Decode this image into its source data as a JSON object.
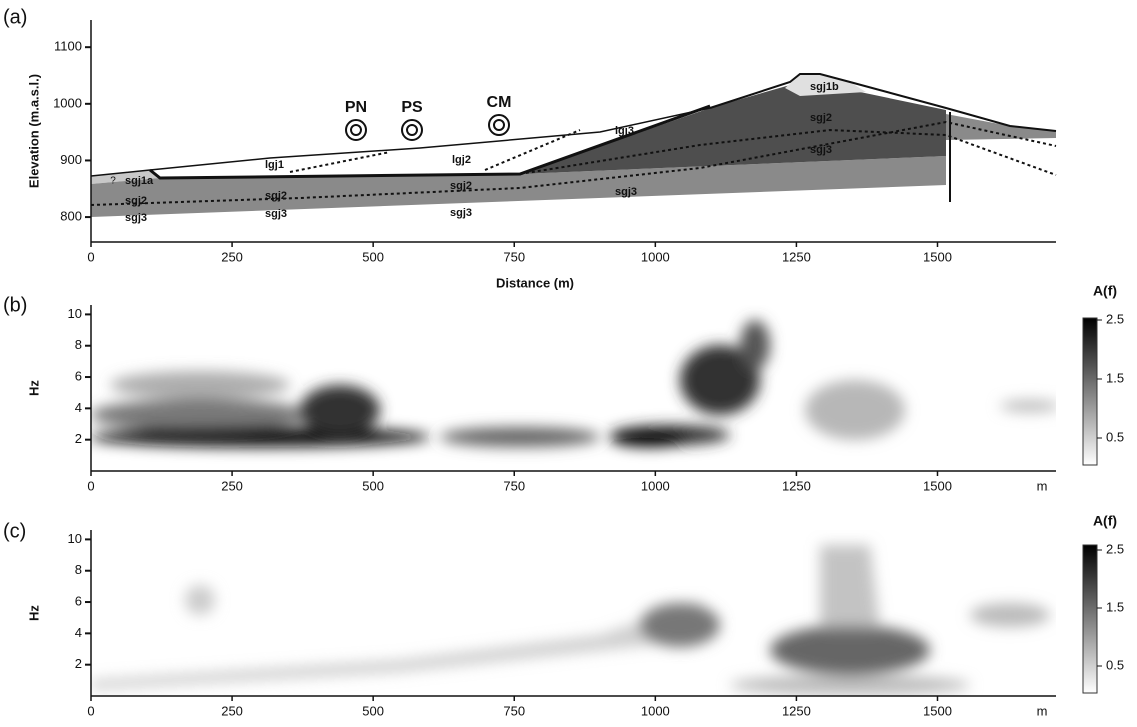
{
  "figure": {
    "panels": [
      {
        "label": "(a)",
        "ylabel": "Elevation (m.a.s.l.)",
        "xlabel": "Distance (m)",
        "xlim": [
          0,
          1710
        ],
        "ylim": [
          756,
          1148
        ],
        "xticks": [
          0,
          250,
          500,
          750,
          1000,
          1250,
          1500
        ],
        "yticks": [
          800,
          900,
          1000,
          1100
        ],
        "stations": [
          "PN",
          "PS",
          "CM"
        ],
        "layers": [
          "sgj1a",
          "sgj2",
          "sgj3",
          "lgj1",
          "sgj2",
          "sgj3",
          "lgj2",
          "sgj2",
          "sgj3",
          "lgj3",
          "sgj3",
          "sgj1b",
          "sgj2",
          "sgj3"
        ],
        "unknown": "?"
      },
      {
        "label": "(b)",
        "ylabel": "Hz",
        "xunit": "m",
        "xlim": [
          0,
          1710
        ],
        "ylim": [
          0,
          10.6
        ],
        "xticks": [
          0,
          250,
          500,
          750,
          1000,
          1250,
          1500
        ],
        "yticks": [
          2,
          4,
          6,
          8,
          10
        ],
        "colorbar_title": "A(f)",
        "clim": [
          0,
          2.5
        ],
        "cticks": [
          0.5,
          1.5,
          2.5
        ]
      },
      {
        "label": "(c)",
        "ylabel": "Hz",
        "xunit": "m",
        "xlim": [
          0,
          1710
        ],
        "ylim": [
          0,
          10.6
        ],
        "xticks": [
          0,
          250,
          500,
          750,
          1000,
          1250,
          1500
        ],
        "yticks": [
          2,
          4,
          6,
          8,
          10
        ],
        "colorbar_title": "A(f)",
        "clim": [
          0,
          2.5
        ],
        "cticks": [
          0.5,
          1.5,
          2.5
        ]
      }
    ]
  }
}
